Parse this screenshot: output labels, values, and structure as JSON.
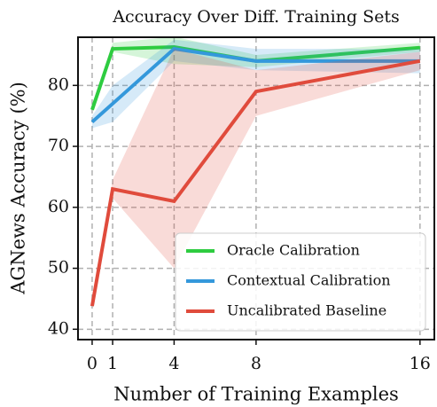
{
  "chart_data": {
    "type": "line",
    "title": "Accuracy Over Diff. Training Sets",
    "xlabel": "Number of Training Examples",
    "ylabel": "AGNews Accuracy (%)",
    "x": [
      0,
      1,
      4,
      8,
      16
    ],
    "xlim": [
      -0.69,
      16.7
    ],
    "xticks": [
      0,
      1,
      4,
      8,
      16
    ],
    "ylim": [
      38.3,
      87.9
    ],
    "yticks": [
      40,
      50,
      60,
      70,
      80
    ],
    "grid": true,
    "legend": "lower right",
    "series": [
      {
        "name": "Oracle Calibration",
        "color": "#2ecc40",
        "values": [
          76,
          86,
          86.3,
          84,
          86.2
        ],
        "lower": [
          76,
          85.5,
          83.5,
          83,
          85.5
        ],
        "upper": [
          76,
          87,
          88,
          85,
          87
        ]
      },
      {
        "name": "Contextual Calibration",
        "color": "#3498db",
        "values": [
          74,
          77,
          86,
          84,
          84
        ],
        "lower": [
          73,
          74,
          84,
          82.5,
          82
        ],
        "upper": [
          75,
          80,
          87.5,
          86,
          86
        ]
      },
      {
        "name": "Uncalibrated Baseline",
        "color": "#e04b3c",
        "values": [
          43.8,
          63,
          61,
          79,
          84
        ],
        "lower": [
          43.8,
          61.5,
          50,
          75,
          82.5
        ],
        "upper": [
          43.8,
          64.5,
          86,
          82.5,
          85.5
        ]
      }
    ]
  }
}
